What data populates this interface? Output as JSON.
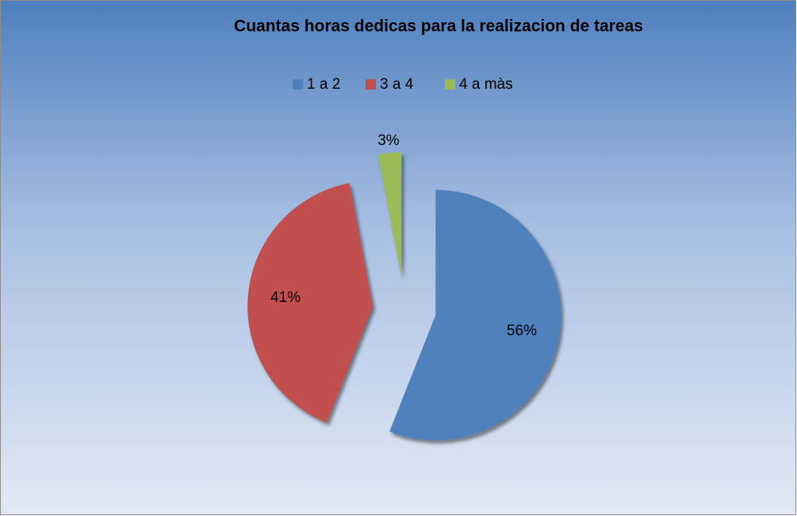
{
  "chart_data": {
    "type": "pie",
    "title": "Cuantas horas dedicas para la realizacion de tareas",
    "categories": [
      "1 a 2",
      "3 a 4",
      "4 a màs"
    ],
    "values": [
      56,
      41,
      3
    ],
    "value_labels": [
      "56%",
      "41%",
      "3%"
    ],
    "colors": [
      "#4f81bd",
      "#c0504d",
      "#9bbb59"
    ],
    "legend": "top"
  }
}
